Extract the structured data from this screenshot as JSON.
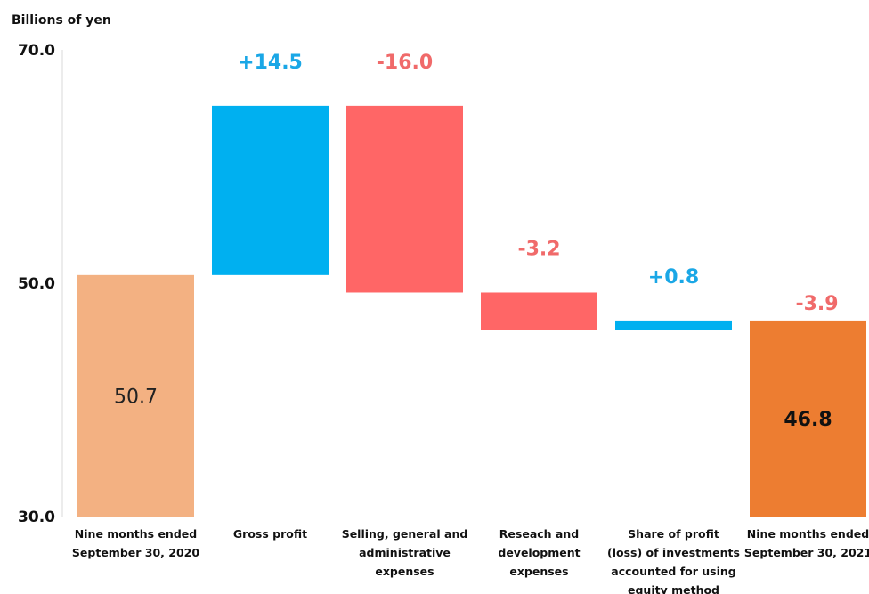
{
  "chart_data": {
    "type": "bar",
    "subtype": "waterfall",
    "unit_label": "Billions of yen",
    "ylim": [
      30.0,
      70.0
    ],
    "yticks": [
      "70.0",
      "50.0",
      "30.0"
    ],
    "grid": false,
    "categories": [
      [
        "Nine months ended",
        "September 30, 2020"
      ],
      [
        "Gross profit"
      ],
      [
        "Selling, general and",
        "administrative",
        "expenses"
      ],
      [
        "Reseach and",
        "development",
        "expenses"
      ],
      [
        "Share of profit",
        "(loss) of investments",
        "accounted for using",
        "equity method"
      ],
      [
        "Nine months ended",
        "September 30, 2021"
      ]
    ],
    "bars": [
      {
        "kind": "total",
        "base": 30.0,
        "top": 50.7,
        "label": "50.7",
        "label_pos": "inside",
        "color": "#F3B182",
        "text_color": "#222222",
        "bold": false
      },
      {
        "kind": "increase",
        "base": 50.7,
        "top": 65.2,
        "label": "+14.5",
        "label_pos": "above",
        "color": "#00B0F0",
        "text_color": "#1AA7E6",
        "bold": true
      },
      {
        "kind": "decrease",
        "base": 49.2,
        "top": 65.2,
        "label": "-16.0",
        "label_pos": "above",
        "color": "#FF6666",
        "text_color": "#F06A6A",
        "bold": true
      },
      {
        "kind": "decrease",
        "base": 46.0,
        "top": 49.2,
        "label": "-3.2",
        "label_pos": "above",
        "color": "#FF6666",
        "text_color": "#F06A6A",
        "bold": true
      },
      {
        "kind": "increase",
        "base": 46.0,
        "top": 46.8,
        "label": "+0.8",
        "label_pos": "above",
        "color": "#00B0F0",
        "text_color": "#1AA7E6",
        "bold": true
      },
      {
        "kind": "total",
        "base": 30.0,
        "top": 46.8,
        "label": "46.8",
        "label_pos": "inside",
        "color": "#ED7D31",
        "text_color": "#111111",
        "bold": true
      }
    ],
    "extra_label": {
      "text": "-3.9",
      "color": "#F06A6A"
    }
  }
}
